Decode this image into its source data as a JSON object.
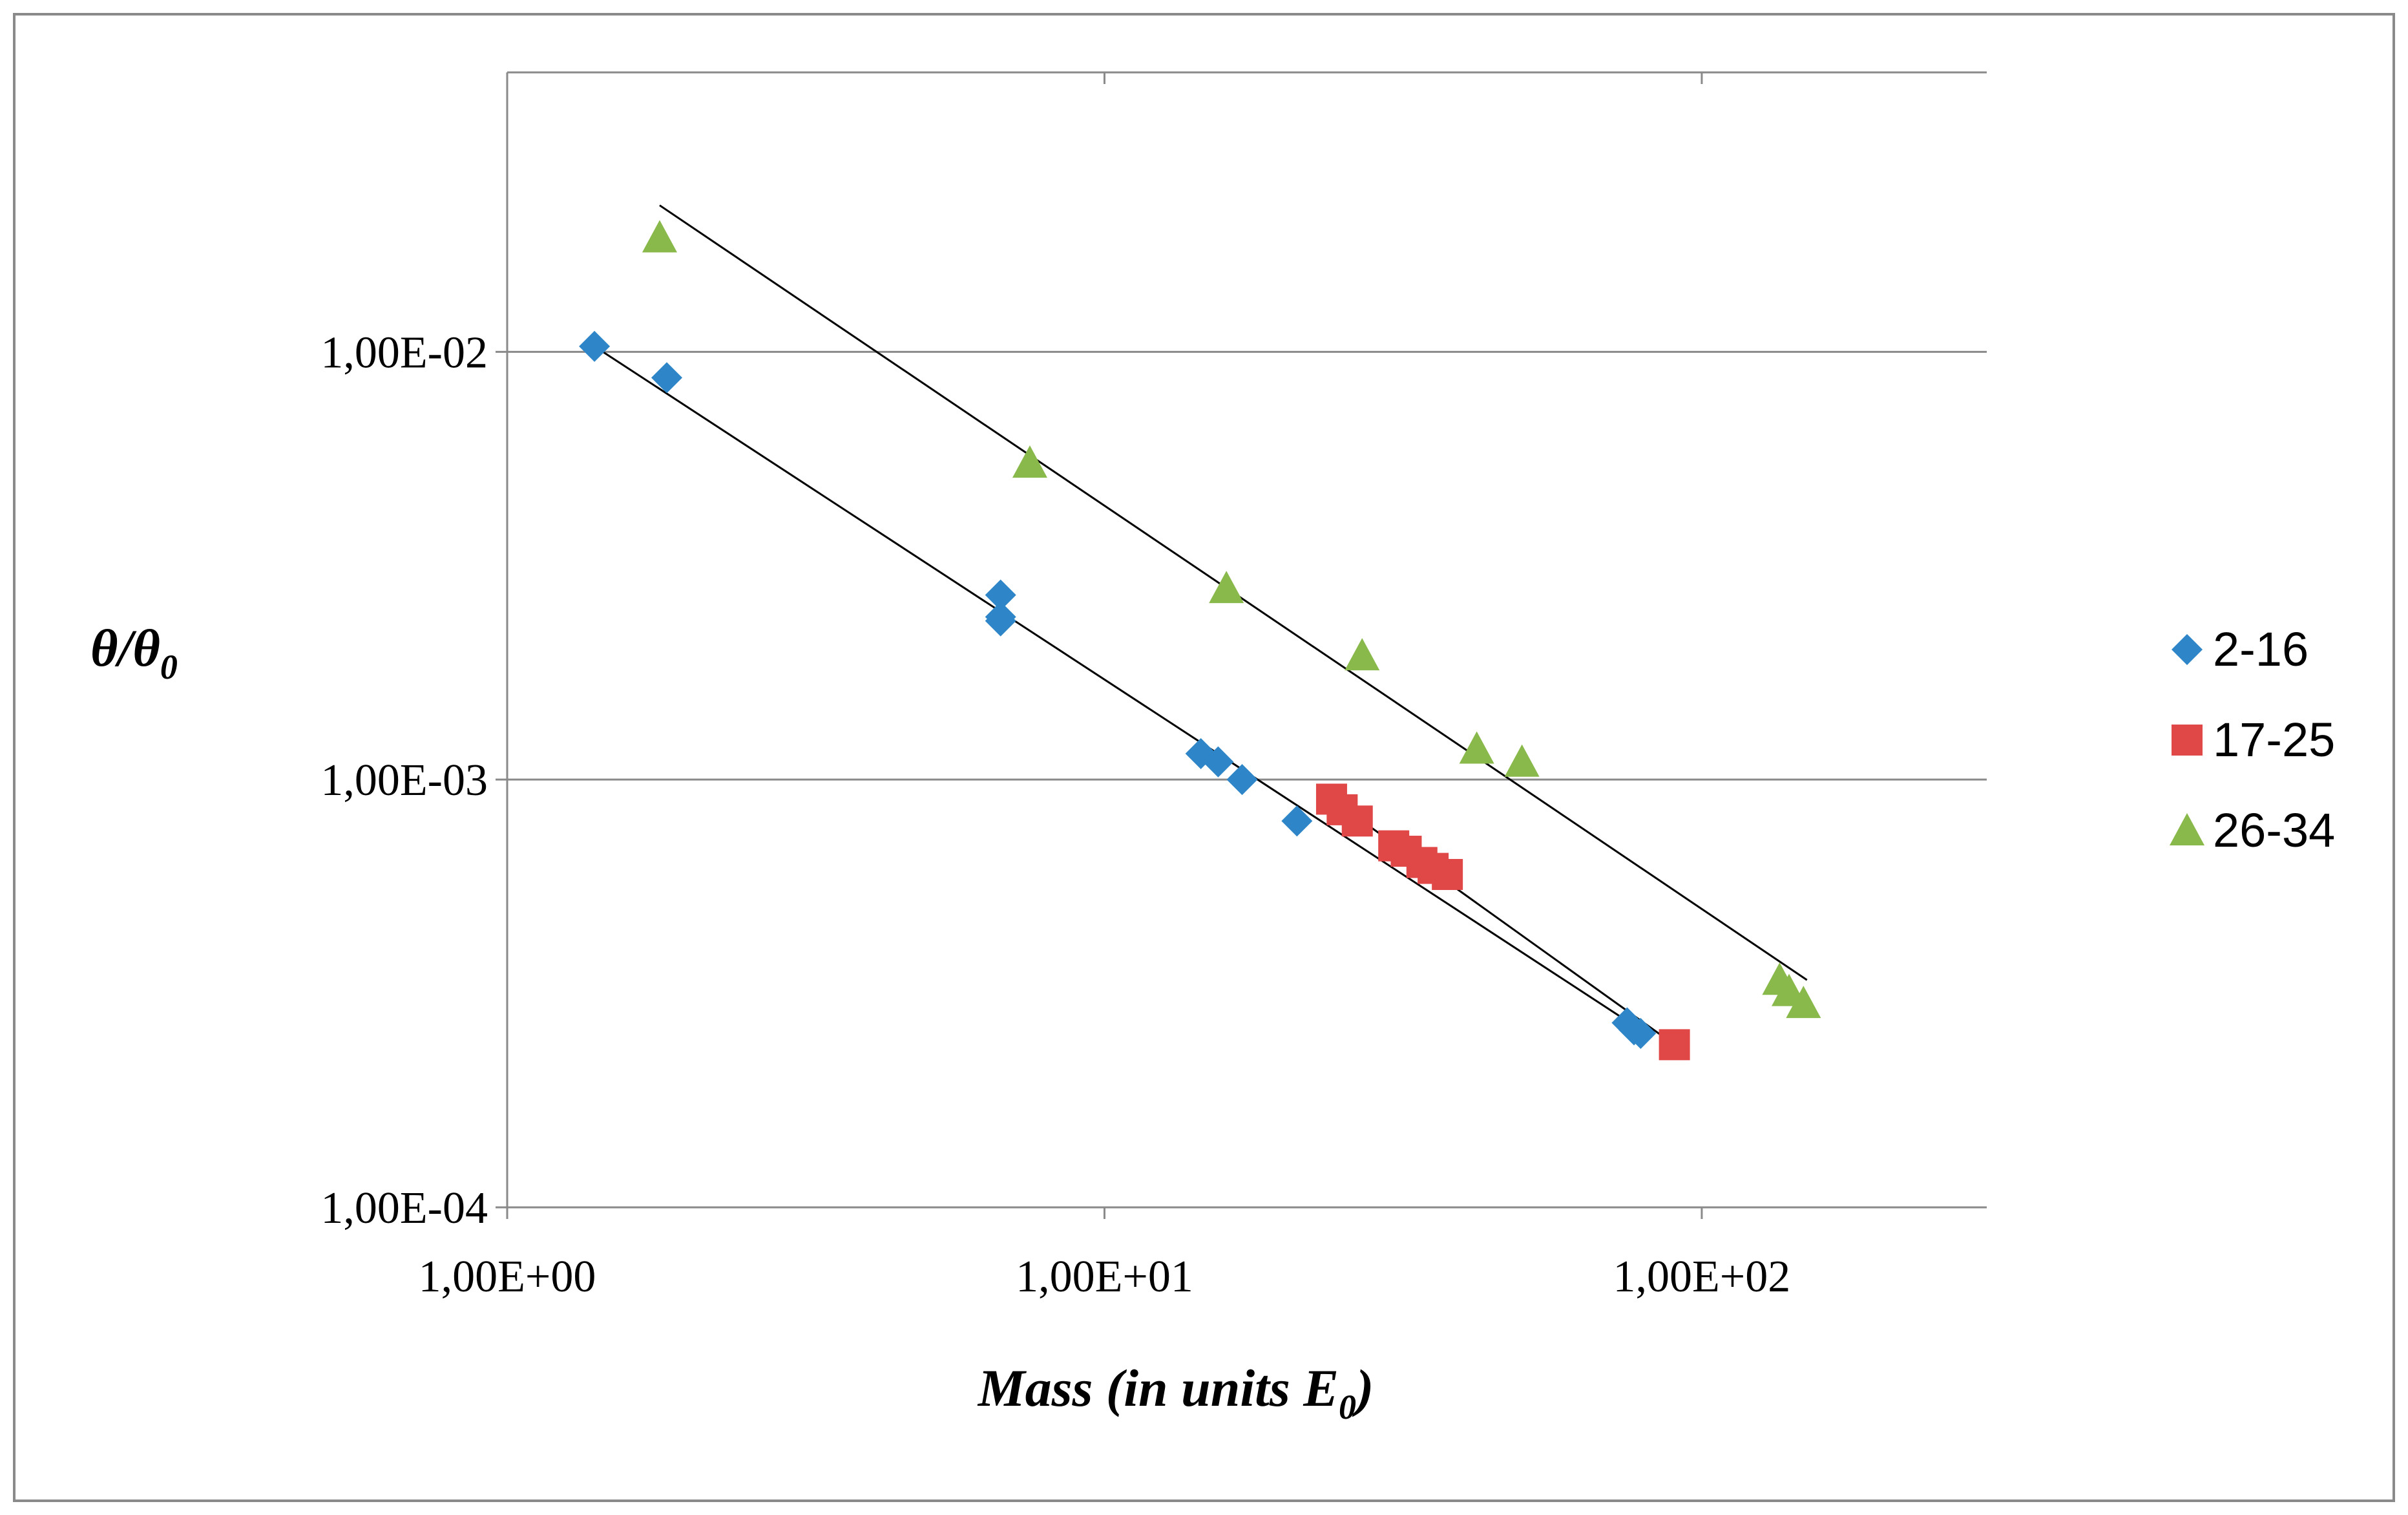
{
  "chart_data": {
    "type": "scatter",
    "title": "",
    "xlabel": "Mass (in units E",
    "xlabel_sub": "0",
    "xlabel_suffix": ")",
    "ylabel": "θ/θ",
    "ylabel_sub": "0",
    "x_scale": "log",
    "y_scale": "log",
    "xlim": [
      1,
      300
    ],
    "ylim": [
      0.0001,
      0.045
    ],
    "x_ticks": [
      {
        "value": 1,
        "label": "1,00E+00"
      },
      {
        "value": 10,
        "label": "1,00E+01"
      },
      {
        "value": 100,
        "label": "1,00E+02"
      }
    ],
    "y_ticks": [
      {
        "value": 0.01,
        "label": "1,00E-02"
      },
      {
        "value": 0.001,
        "label": "1,00E-03"
      },
      {
        "value": 0.0001,
        "label": "1,00E-04"
      }
    ],
    "grid": "horizontal",
    "legend_position": "right",
    "series": [
      {
        "name": "2-16",
        "marker": "diamond",
        "color": "#2E86C8",
        "points": [
          [
            1.4,
            0.0103
          ],
          [
            1.85,
            0.0087
          ],
          [
            6.7,
            0.0027
          ],
          [
            6.7,
            0.0024
          ],
          [
            6.7,
            0.00235
          ],
          [
            14.5,
            0.00115
          ],
          [
            15.5,
            0.0011
          ],
          [
            17.0,
            0.001
          ],
          [
            21.0,
            0.0008
          ],
          [
            75.0,
            0.00027
          ],
          [
            77.0,
            0.00026
          ],
          [
            79.0,
            0.000255
          ]
        ],
        "trend": [
          [
            1.4,
            0.0103
          ],
          [
            79.0,
            0.00026
          ]
        ]
      },
      {
        "name": "17-25",
        "marker": "square",
        "color": "#E04848",
        "points": [
          [
            24.0,
            0.0009
          ],
          [
            25.0,
            0.00085
          ],
          [
            26.5,
            0.0008
          ],
          [
            30.5,
            0.0007
          ],
          [
            32.0,
            0.00068
          ],
          [
            34.0,
            0.00064
          ],
          [
            35.5,
            0.00062
          ],
          [
            37.5,
            0.0006
          ],
          [
            90.0,
            0.00024
          ]
        ],
        "trend": [
          [
            24.0,
            0.0009
          ],
          [
            90.0,
            0.00024
          ]
        ]
      },
      {
        "name": "26-34",
        "marker": "triangle",
        "color": "#88B94A",
        "points": [
          [
            1.8,
            0.0185
          ],
          [
            7.5,
            0.0055
          ],
          [
            16.0,
            0.0028
          ],
          [
            27.0,
            0.00195
          ],
          [
            42.0,
            0.00118
          ],
          [
            50.0,
            0.0011
          ],
          [
            135.0,
            0.00034
          ],
          [
            140.0,
            0.00032
          ],
          [
            148.0,
            0.0003
          ]
        ],
        "trend": [
          [
            1.8,
            0.022
          ],
          [
            150.0,
            0.00034
          ]
        ]
      }
    ]
  }
}
